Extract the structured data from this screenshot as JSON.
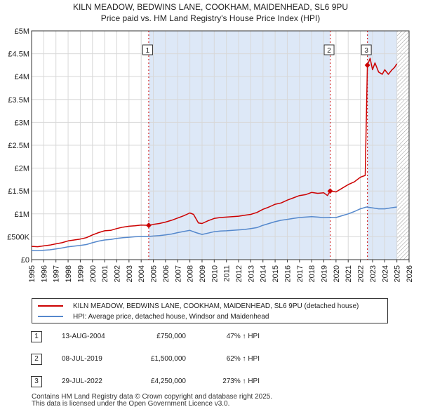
{
  "header": {
    "title": "KILN MEADOW, BEDWINS LANE, COOKHAM, MAIDENHEAD, SL6 9PU",
    "subtitle": "Price paid vs. HM Land Registry's House Price Index (HPI)"
  },
  "legend": {
    "property_label": "KILN MEADOW, BEDWINS LANE, COOKHAM, MAIDENHEAD, SL6 9PU (detached house)",
    "hpi_label": "HPI: Average price, detached house, Windsor and Maidenhead"
  },
  "sales": [
    {
      "num": "1",
      "date": "13-AUG-2004",
      "price": "£750,000",
      "hpi": "47% ↑ HPI"
    },
    {
      "num": "2",
      "date": "08-JUL-2019",
      "price": "£1,500,000",
      "hpi": "62% ↑ HPI"
    },
    {
      "num": "3",
      "date": "29-JUL-2022",
      "price": "£4,250,000",
      "hpi": "273% ↑ HPI"
    }
  ],
  "footer": {
    "line1": "Contains HM Land Registry data © Crown copyright and database right 2025.",
    "line2": "This data is licensed under the Open Government Licence v3.0."
  },
  "colors": {
    "property": "#cc0000",
    "hpi": "#5588cc",
    "shade": "#dde8f7",
    "grid": "#d8d8d8",
    "marker": "#cc0000"
  },
  "chart_data": {
    "type": "line",
    "title": "KILN MEADOW, BEDWINS LANE, COOKHAM, MAIDENHEAD, SL6 9PU",
    "xlabel": "",
    "ylabel": "",
    "xlim": [
      1995,
      2026
    ],
    "ylim": [
      0,
      5000000
    ],
    "y_ticks": [
      0,
      500000,
      1000000,
      1500000,
      2000000,
      2500000,
      3000000,
      3500000,
      4000000,
      4500000,
      5000000
    ],
    "y_tick_labels": [
      "£0",
      "£500K",
      "£1M",
      "£1.5M",
      "£2M",
      "£2.5M",
      "£3M",
      "£3.5M",
      "£4M",
      "£4.5M",
      "£5M"
    ],
    "x_ticks": [
      1995,
      1996,
      1997,
      1998,
      1999,
      2000,
      2001,
      2002,
      2003,
      2004,
      2005,
      2006,
      2007,
      2008,
      2009,
      2010,
      2011,
      2012,
      2013,
      2014,
      2015,
      2016,
      2017,
      2018,
      2019,
      2020,
      2021,
      2022,
      2023,
      2024,
      2025,
      2026
    ],
    "x_tick_labels": [
      "1995",
      "1996",
      "1997",
      "1998",
      "1999",
      "2000",
      "2001",
      "2002",
      "2003",
      "2004",
      "2005",
      "2006",
      "2007",
      "2008",
      "2009",
      "2010",
      "2011",
      "2012",
      "2013",
      "2014",
      "2015",
      "2016",
      "2017",
      "2018",
      "2019",
      "2020",
      "2021",
      "2022",
      "2023",
      "2024",
      "2025",
      "2026"
    ],
    "shaded_ranges": [
      [
        2004.62,
        2019.52
      ],
      [
        2022.58,
        2025.0
      ]
    ],
    "hatched_range": [
      2025.0,
      2026.0
    ],
    "series": [
      {
        "name": "KILN MEADOW, BEDWINS LANE, COOKHAM, MAIDENHEAD, SL6 9PU (detached house)",
        "x": [
          1995,
          1995.5,
          1996,
          1996.5,
          1997,
          1997.5,
          1998,
          1998.5,
          1999,
          1999.5,
          2000,
          2000.5,
          2001,
          2001.5,
          2002,
          2002.5,
          2003,
          2003.5,
          2004,
          2004.62,
          2005,
          2005.5,
          2006,
          2006.5,
          2007,
          2007.5,
          2008,
          2008.3,
          2008.7,
          2009,
          2009.5,
          2010,
          2010.5,
          2011,
          2011.5,
          2012,
          2012.5,
          2013,
          2013.5,
          2014,
          2014.5,
          2015,
          2015.5,
          2016,
          2016.5,
          2017,
          2017.5,
          2018,
          2018.5,
          2019,
          2019.3,
          2019.52,
          2020,
          2020.5,
          2021,
          2021.5,
          2022,
          2022.4,
          2022.58,
          2022.8,
          2023,
          2023.2,
          2023.5,
          2023.8,
          2024,
          2024.3,
          2024.6,
          2024.8,
          2025
        ],
        "values": [
          290000,
          282000,
          300000,
          318000,
          345000,
          370000,
          410000,
          430000,
          450000,
          480000,
          540000,
          590000,
          630000,
          640000,
          680000,
          710000,
          730000,
          740000,
          755000,
          750000,
          770000,
          790000,
          820000,
          860000,
          910000,
          960000,
          1020000,
          990000,
          800000,
          790000,
          850000,
          900000,
          920000,
          930000,
          940000,
          950000,
          970000,
          990000,
          1030000,
          1100000,
          1150000,
          1210000,
          1240000,
          1300000,
          1350000,
          1400000,
          1420000,
          1470000,
          1450000,
          1460000,
          1400000,
          1500000,
          1480000,
          1560000,
          1640000,
          1700000,
          1800000,
          1840000,
          4250000,
          4400000,
          4150000,
          4300000,
          4100000,
          4050000,
          4150000,
          4050000,
          4150000,
          4200000,
          4280000
        ]
      },
      {
        "name": "HPI: Average price, detached house, Windsor and Maidenhead",
        "x": [
          1995,
          1995.5,
          1996,
          1996.5,
          1997,
          1997.5,
          1998,
          1998.5,
          1999,
          1999.5,
          2000,
          2000.5,
          2001,
          2001.5,
          2002,
          2002.5,
          2003,
          2003.5,
          2004,
          2004.5,
          2005,
          2005.5,
          2006,
          2006.5,
          2007,
          2007.5,
          2008,
          2008.5,
          2009,
          2009.5,
          2010,
          2010.5,
          2011,
          2011.5,
          2012,
          2012.5,
          2013,
          2013.5,
          2014,
          2014.5,
          2015,
          2015.5,
          2016,
          2016.5,
          2017,
          2017.5,
          2018,
          2018.5,
          2019,
          2019.5,
          2020,
          2020.5,
          2021,
          2021.5,
          2022,
          2022.5,
          2023,
          2023.5,
          2024,
          2024.5,
          2025
        ],
        "values": [
          200000,
          195000,
          205000,
          215000,
          235000,
          255000,
          280000,
          295000,
          310000,
          330000,
          370000,
          405000,
          430000,
          440000,
          465000,
          480000,
          490000,
          500000,
          505000,
          505000,
          515000,
          525000,
          540000,
          560000,
          590000,
          615000,
          640000,
          590000,
          550000,
          580000,
          610000,
          625000,
          630000,
          640000,
          650000,
          660000,
          680000,
          700000,
          750000,
          790000,
          830000,
          860000,
          880000,
          900000,
          920000,
          930000,
          940000,
          930000,
          915000,
          925000,
          920000,
          960000,
          1000000,
          1050000,
          1110000,
          1150000,
          1130000,
          1110000,
          1110000,
          1130000,
          1150000
        ]
      }
    ],
    "annotations": [
      {
        "label": "1",
        "x": 2004.62,
        "value": 750000
      },
      {
        "label": "2",
        "x": 2019.52,
        "value": 1500000
      },
      {
        "label": "3",
        "x": 2022.58,
        "value": 4250000
      }
    ]
  }
}
